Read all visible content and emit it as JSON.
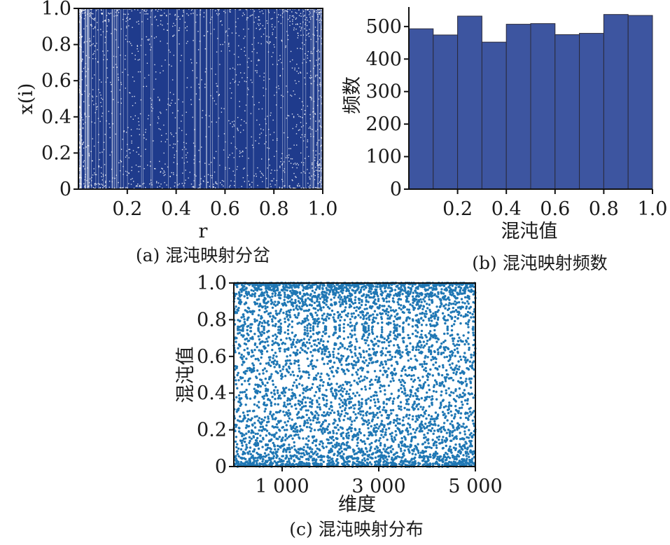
{
  "chart_data": [
    {
      "type": "scatter",
      "panel": "a",
      "caption": "(a) 混沌映射分岔",
      "xlabel": "r",
      "ylabel": "x(i)",
      "xlim": [
        0,
        1.0
      ],
      "ylim": [
        0,
        1.0
      ],
      "x_ticks": [
        0.2,
        0.4,
        0.6,
        0.8,
        1.0
      ],
      "x_tick_labels": [
        "0.2",
        "0.4",
        "0.6",
        "0.8",
        "1.0"
      ],
      "y_ticks": [
        0,
        0.2,
        0.4,
        0.6,
        0.8,
        1.0
      ],
      "y_tick_labels": [
        "0",
        "0.2",
        "0.4",
        "0.6",
        "0.8",
        "1.0"
      ],
      "color": "#1f3b8c",
      "grid": false,
      "description_of_density": "dense points uniformly covering x(i) in [0,1] for every r in [0,1]"
    },
    {
      "type": "bar",
      "panel": "b",
      "caption": "(b) 混沌映射频数",
      "xlabel": "混沌值",
      "ylabel": "频数",
      "bins": [
        [
          0.0,
          0.1
        ],
        [
          0.1,
          0.2
        ],
        [
          0.2,
          0.3
        ],
        [
          0.3,
          0.4
        ],
        [
          0.4,
          0.5
        ],
        [
          0.5,
          0.6
        ],
        [
          0.6,
          0.7
        ],
        [
          0.7,
          0.8
        ],
        [
          0.8,
          0.9
        ],
        [
          0.9,
          1.0
        ]
      ],
      "values": [
        493,
        474,
        532,
        452,
        507,
        509,
        475,
        479,
        537,
        534
      ],
      "xlim": [
        0,
        1.0
      ],
      "ylim": [
        0,
        560
      ],
      "x_ticks": [
        0.2,
        0.4,
        0.6,
        0.8,
        1.0
      ],
      "x_tick_labels": [
        "0.2",
        "0.4",
        "0.6",
        "0.8",
        "1.0"
      ],
      "y_ticks": [
        0,
        100,
        200,
        300,
        400,
        500
      ],
      "y_tick_labels": [
        "0",
        "100",
        "200",
        "300",
        "400",
        "500"
      ],
      "color": "#3d55a0",
      "grid": false
    },
    {
      "type": "scatter",
      "panel": "c",
      "caption": "(c) 混沌映射分布",
      "xlabel": "维度",
      "ylabel": "混沌值",
      "xlim": [
        0,
        5000
      ],
      "ylim": [
        0,
        1.0
      ],
      "x_ticks": [
        1000,
        3000,
        5000
      ],
      "x_tick_labels": [
        "1 000",
        "3 000",
        "5 000"
      ],
      "y_ticks": [
        0,
        0.2,
        0.4,
        0.6,
        0.8,
        1.0
      ],
      "y_tick_labels": [
        "0",
        "0.2",
        "0.4",
        "0.6",
        "0.8",
        "1.0"
      ],
      "point_count": 5000,
      "color": "#1f77b4",
      "grid": false
    }
  ],
  "colors": {
    "bifurcation_dots": "#1f3b8c",
    "histogram_bars": "#3d55a0",
    "histogram_edges": "#2a2a3a",
    "distribution_dots": "#1f77b4",
    "axes": "#111111"
  }
}
